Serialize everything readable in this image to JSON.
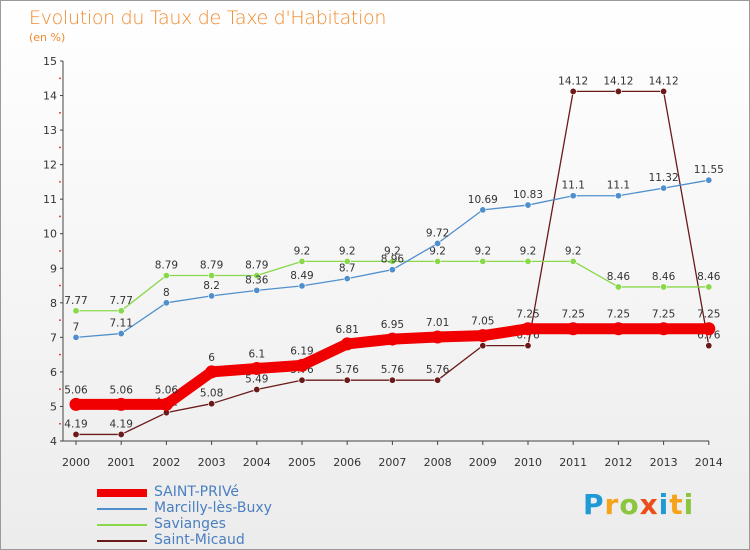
{
  "title": "Evolution du Taux de Taxe d'Habitation",
  "subtitle": "(en %)",
  "logo": {
    "letters": [
      "P",
      "r",
      "o",
      "x",
      "i",
      "t",
      "i"
    ],
    "colors": [
      "#1f9ad6",
      "#f5a31a",
      "#8cc63f",
      "#e94e1b",
      "#1f9ad6",
      "#f5a31a",
      "#8cc63f"
    ]
  },
  "chart_data": {
    "type": "line",
    "title": "Evolution du Taux de Taxe d'Habitation",
    "subtitle": "(en %)",
    "x": [
      2000,
      2001,
      2002,
      2003,
      2004,
      2005,
      2006,
      2007,
      2008,
      2009,
      2010,
      2011,
      2012,
      2013,
      2014
    ],
    "ylim": [
      4,
      15
    ],
    "yticks": [
      4,
      5,
      6,
      7,
      8,
      9,
      10,
      11,
      12,
      13,
      14,
      15
    ],
    "grid": false,
    "legend": "bottom-left",
    "series": [
      {
        "name": "Saint-Micaud",
        "color": "#6b1a1a",
        "values": [
          4.19,
          4.19,
          4.82,
          5.08,
          5.49,
          5.76,
          5.76,
          5.76,
          5.76,
          6.76,
          6.76,
          14.12,
          14.12,
          14.12,
          6.76
        ],
        "labels": [
          "4.19",
          "4.19",
          "4.82",
          "5.08",
          "5.49",
          "5.76",
          "5.76",
          "5.76",
          "5.76",
          "6.76",
          "6.76",
          "14.12",
          "14.12",
          "14.12",
          "6.76"
        ]
      },
      {
        "name": "Savianges",
        "color": "#88d84a",
        "values": [
          7.77,
          7.77,
          8.79,
          8.79,
          8.79,
          9.2,
          9.2,
          9.2,
          9.2,
          9.2,
          9.2,
          9.2,
          8.46,
          8.46,
          8.46
        ],
        "labels": [
          "7.77",
          "7.77",
          "8.79",
          "8.79",
          "8.79",
          "9.2",
          "9.2",
          "9.2",
          "9.2",
          "9.2",
          "9.2",
          "9.2",
          "8.46",
          "8.46",
          "8.46"
        ]
      },
      {
        "name": "Marcilly-lès-Buxy",
        "color": "#4f90cc",
        "values": [
          7,
          7.11,
          8,
          8.2,
          8.36,
          8.49,
          8.7,
          8.96,
          9.72,
          10.69,
          10.83,
          11.1,
          11.1,
          11.32,
          11.55
        ],
        "labels": [
          "7",
          "7.11",
          "8",
          "8.2",
          "8.36",
          "8.49",
          "8.7",
          "8.96",
          "9.72",
          "10.69",
          "10.83",
          "11.1",
          "11.1",
          "11.32",
          "11.55"
        ]
      },
      {
        "name": "SAINT-PRIVé",
        "color": "#f00000",
        "values": [
          5.06,
          5.06,
          5.06,
          6,
          6.1,
          6.19,
          6.81,
          6.95,
          7.01,
          7.05,
          7.25,
          7.25,
          7.25,
          7.25,
          7.25
        ],
        "labels": [
          "5.06",
          "5.06",
          "5.06",
          "6",
          "6.1",
          "6.19",
          "6.81",
          "6.95",
          "7.01",
          "7.05",
          "7.25",
          "7.25",
          "7.25",
          "7.25",
          "7.25"
        ]
      }
    ]
  },
  "legend": [
    {
      "label": "SAINT-PRIVé",
      "color": "#f00000"
    },
    {
      "label": "Marcilly-lès-Buxy",
      "color": "#4f90cc"
    },
    {
      "label": "Savianges",
      "color": "#88d84a"
    },
    {
      "label": "Saint-Micaud",
      "color": "#6b1a1a"
    }
  ]
}
